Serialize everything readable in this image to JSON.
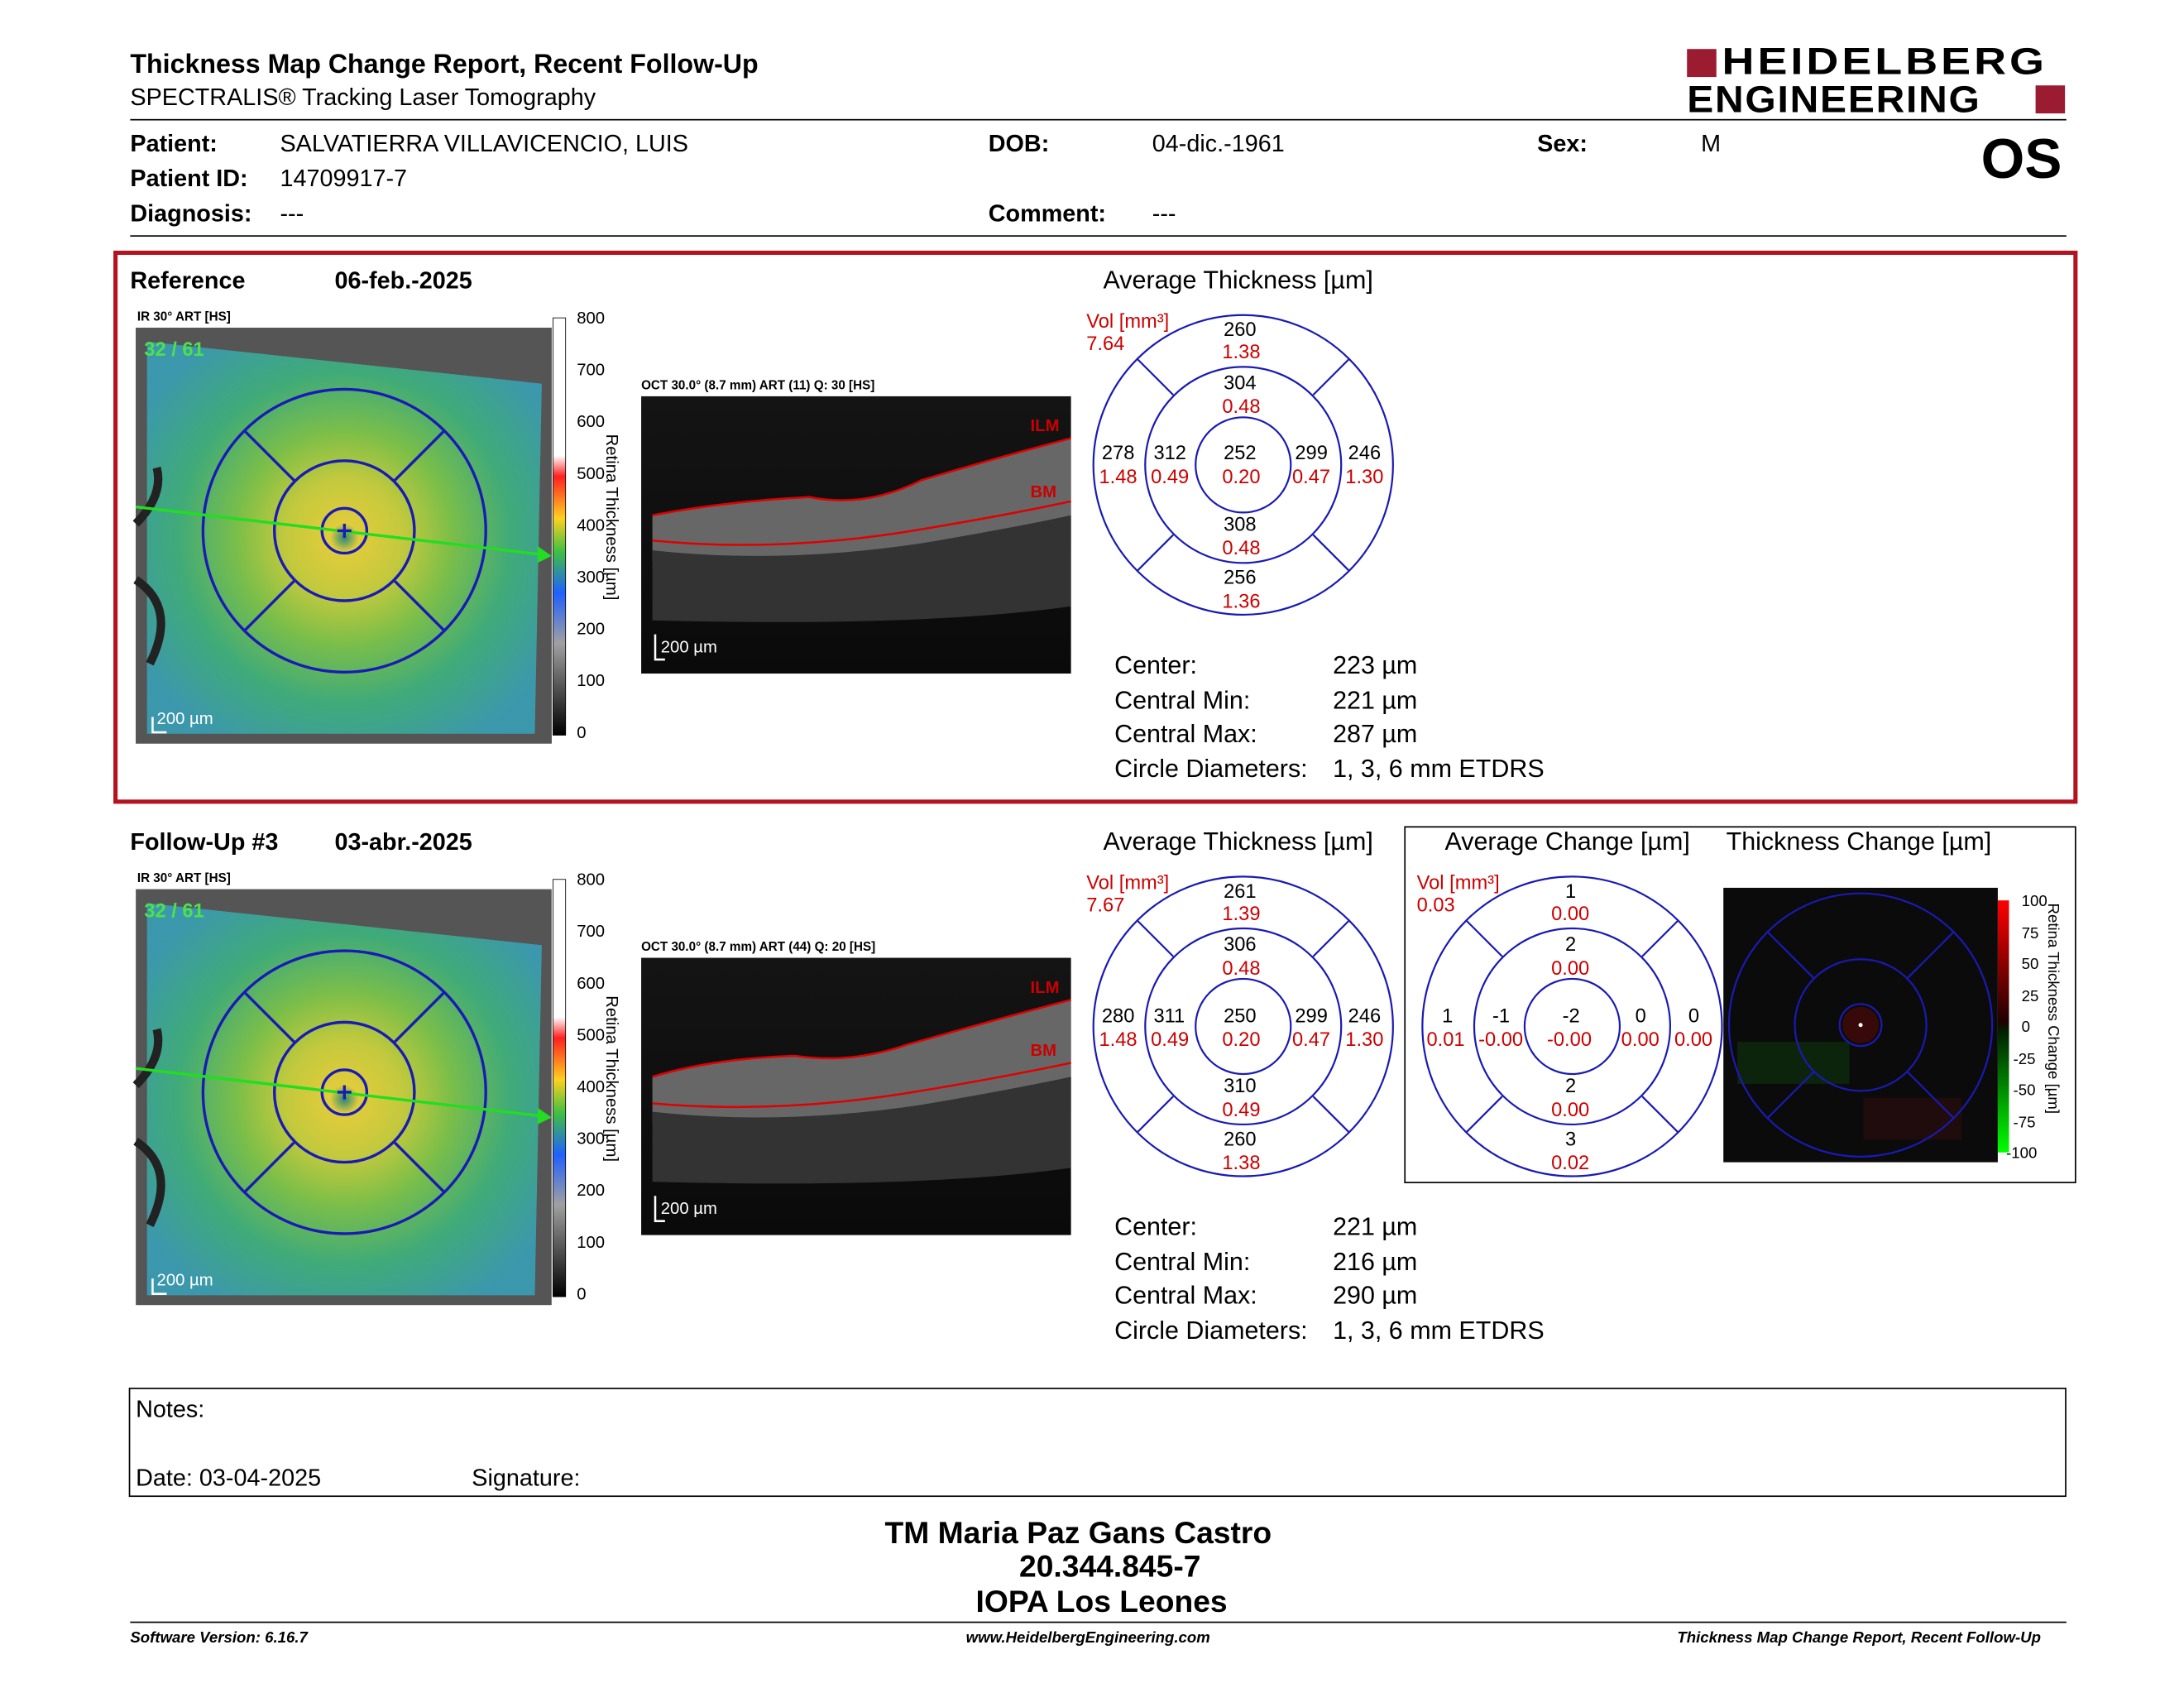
{
  "header": {
    "title": "Thickness Map Change Report, Recent Follow-Up",
    "subtitle": "SPECTRALIS® Tracking Laser Tomography",
    "logo_line1": "HEIDELBERG",
    "logo_line2": "ENGINEERING",
    "eye": "OS"
  },
  "patient": {
    "patient_label": "Patient:",
    "patient_value": "SALVATIERRA VILLAVICENCIO, LUIS",
    "dob_label": "DOB:",
    "dob_value": "04-dic.-1961",
    "sex_label": "Sex:",
    "sex_value": "M",
    "id_label": "Patient ID:",
    "id_value": "14709917-7",
    "diagnosis_label": "Diagnosis:",
    "diagnosis_value": "---",
    "comment_label": "Comment:",
    "comment_value": "---"
  },
  "colorbar": {
    "ticks": [
      "800",
      "700",
      "600",
      "500",
      "400",
      "300",
      "200",
      "100",
      "0"
    ],
    "title": "Retina Thickness [µm]"
  },
  "reference": {
    "label": "Reference",
    "date": "06-feb.-2025",
    "ir_label": "IR 30° ART [HS]",
    "ir_overlay": "32 / 61",
    "ir_scale": "200 µm",
    "oct_label": "OCT 30.0° (8.7 mm) ART (11) Q: 30 [HS]",
    "oct_scale": "200 µm",
    "ilm": "ILM",
    "bm": "BM",
    "avg_title": "Average Thickness [µm]",
    "vol_label": "Vol [mm³]",
    "vol_value": "7.64",
    "grid": {
      "outer_top": {
        "t": "260",
        "v": "1.38"
      },
      "inner_top": {
        "t": "304",
        "v": "0.48"
      },
      "outer_left": {
        "t": "278",
        "v": "1.48"
      },
      "inner_left": {
        "t": "312",
        "v": "0.49"
      },
      "center": {
        "t": "252",
        "v": "0.20"
      },
      "inner_right": {
        "t": "299",
        "v": "0.47"
      },
      "outer_right": {
        "t": "246",
        "v": "1.30"
      },
      "inner_bottom": {
        "t": "308",
        "v": "0.48"
      },
      "outer_bottom": {
        "t": "256",
        "v": "1.36"
      }
    },
    "stats": {
      "center_label": "Center:",
      "center_value": "223 µm",
      "min_label": "Central Min:",
      "min_value": "221 µm",
      "max_label": "Central Max:",
      "max_value": "287 µm",
      "diam_label": "Circle Diameters:",
      "diam_value": "1, 3, 6 mm ETDRS"
    }
  },
  "followup": {
    "label": "Follow-Up #3",
    "date": "03-abr.-2025",
    "ir_label": "IR 30° ART [HS]",
    "ir_overlay": "32 / 61",
    "ir_scale": "200 µm",
    "oct_label": "OCT 30.0° (8.7 mm) ART (44) Q: 20 [HS]",
    "oct_scale": "200 µm",
    "ilm": "ILM",
    "bm": "BM",
    "avg_title": "Average Thickness [µm]",
    "vol_label": "Vol [mm³]",
    "vol_value": "7.67",
    "grid": {
      "outer_top": {
        "t": "261",
        "v": "1.39"
      },
      "inner_top": {
        "t": "306",
        "v": "0.48"
      },
      "outer_left": {
        "t": "280",
        "v": "1.48"
      },
      "inner_left": {
        "t": "311",
        "v": "0.49"
      },
      "center": {
        "t": "250",
        "v": "0.20"
      },
      "inner_right": {
        "t": "299",
        "v": "0.47"
      },
      "outer_right": {
        "t": "246",
        "v": "1.30"
      },
      "inner_bottom": {
        "t": "310",
        "v": "0.49"
      },
      "outer_bottom": {
        "t": "260",
        "v": "1.38"
      }
    },
    "stats": {
      "center_label": "Center:",
      "center_value": "221 µm",
      "min_label": "Central Min:",
      "min_value": "216 µm",
      "max_label": "Central Max:",
      "max_value": "290 µm",
      "diam_label": "Circle Diameters:",
      "diam_value": "1, 3, 6 mm ETDRS"
    }
  },
  "change": {
    "avg_title": "Average Change [µm]",
    "map_title": "Thickness Change [µm]",
    "vol_label": "Vol [mm³]",
    "vol_value": "0.03",
    "grid": {
      "outer_top": {
        "t": "1",
        "v": "0.00"
      },
      "inner_top": {
        "t": "2",
        "v": "0.00"
      },
      "outer_left": {
        "t": "1",
        "v": "0.01"
      },
      "inner_left": {
        "t": "-1",
        "v": "-0.00"
      },
      "center": {
        "t": "-2",
        "v": "-0.00"
      },
      "inner_right": {
        "t": "0",
        "v": "0.00"
      },
      "outer_right": {
        "t": "0",
        "v": "0.00"
      },
      "inner_bottom": {
        "t": "2",
        "v": "0.00"
      },
      "outer_bottom": {
        "t": "3",
        "v": "0.02"
      }
    },
    "colorbar_ticks": [
      "100",
      "75",
      "50",
      "25",
      "0",
      "-25",
      "-50",
      "-75",
      "-100"
    ],
    "colorbar_title": "Retina Thickness Change [µm]"
  },
  "notes": {
    "notes_label": "Notes:",
    "date_label": "Date: 03-04-2025",
    "signature_label": "Signature:"
  },
  "signature_block": {
    "name": "TM Maria Paz Gans Castro",
    "id": "20.344.845-7",
    "org": "IOPA Los Leones"
  },
  "footer": {
    "version": "Software Version: 6.16.7",
    "website": "www.HeidelbergEngineering.com",
    "report": "Thickness Map Change Report, Recent Follow-Up"
  },
  "colors": {
    "frame_red": "#b3121f",
    "grid_blue": "#1a1ab4",
    "value_red": "#cc0000",
    "logo_red": "#9b1b30"
  }
}
